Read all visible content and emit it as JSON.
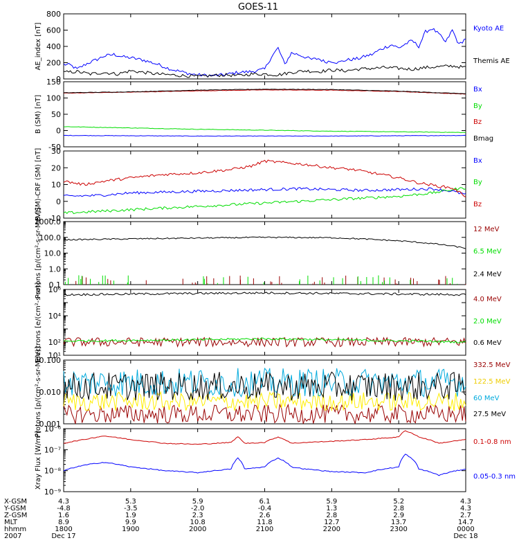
{
  "title": "GOES-11",
  "colors": {
    "blue": "#0000ff",
    "green": "#00dd00",
    "red": "#cc0000",
    "darkred": "#990000",
    "black": "#000000",
    "yellow": "#ffee00",
    "cyan": "#00aadd"
  },
  "chart_data": [
    {
      "type": "line",
      "id": "ae",
      "ylabel": "AE_index [nT]",
      "scale": "linear",
      "ylim": [
        0,
        800
      ],
      "yticks": [
        0,
        200,
        400,
        600,
        800
      ],
      "series": [
        {
          "name": "Kyoto AE",
          "color": "blue",
          "x": [
            0,
            0.1,
            0.2,
            0.35,
            0.5,
            0.6,
            0.75,
            0.9,
            1.0,
            1.2,
            1.4,
            1.6,
            1.8,
            1.9,
            2.0,
            2.2,
            2.4,
            2.6,
            2.8,
            3.0,
            3.1,
            3.2,
            3.3,
            3.4,
            3.5,
            3.6,
            3.7,
            3.8,
            3.9,
            4.0,
            4.1,
            4.2,
            4.3,
            4.4,
            4.5,
            4.6,
            4.7,
            4.8,
            4.9,
            5.0,
            5.1,
            5.2,
            5.3,
            5.4,
            5.5,
            5.6,
            5.7,
            5.8,
            5.9,
            6.0
          ],
          "y": [
            180,
            170,
            120,
            190,
            240,
            280,
            300,
            270,
            260,
            230,
            180,
            120,
            80,
            60,
            50,
            40,
            50,
            80,
            90,
            120,
            270,
            380,
            180,
            320,
            300,
            270,
            240,
            250,
            210,
            220,
            200,
            230,
            240,
            250,
            280,
            300,
            350,
            390,
            420,
            380,
            430,
            470,
            400,
            580,
            620,
            550,
            450,
            600,
            420,
            500
          ]
        },
        {
          "name": "Themis AE",
          "color": "black",
          "x": [
            0,
            0.2,
            0.4,
            0.6,
            0.8,
            1.0,
            1.2,
            1.4,
            1.6,
            1.8,
            2.0,
            2.2,
            2.4,
            2.6,
            2.8,
            3.0,
            3.2,
            3.4,
            3.6,
            3.8,
            4.0,
            4.2,
            4.4,
            4.6,
            4.8,
            5.0,
            5.2,
            5.4,
            5.6,
            5.8,
            6.0
          ],
          "y": [
            80,
            90,
            60,
            80,
            60,
            100,
            80,
            60,
            50,
            40,
            30,
            40,
            50,
            40,
            60,
            60,
            50,
            80,
            100,
            90,
            110,
            100,
            120,
            130,
            140,
            130,
            120,
            140,
            150,
            160,
            140
          ]
        }
      ]
    },
    {
      "type": "line",
      "id": "bsm",
      "ylabel": "B (SM) [nT]",
      "scale": "linear",
      "ylim": [
        -50,
        150
      ],
      "yticks": [
        -50,
        0,
        50,
        100,
        150
      ],
      "series": [
        {
          "name": "Bx",
          "color": "blue",
          "x": [
            0,
            1,
            2,
            3,
            4,
            5,
            6
          ],
          "y": [
            -15,
            -16,
            -17,
            -17,
            -17,
            -16,
            -15
          ]
        },
        {
          "name": "By",
          "color": "green",
          "x": [
            0,
            1,
            2,
            3,
            4,
            5,
            6
          ],
          "y": [
            12,
            8,
            4,
            1,
            -2,
            -4,
            -6
          ]
        },
        {
          "name": "Bz",
          "color": "red",
          "x": [
            0,
            1,
            2,
            3,
            4,
            5,
            6
          ],
          "y": [
            115,
            118,
            122,
            125,
            124,
            120,
            112
          ]
        },
        {
          "name": "Bmag",
          "color": "black",
          "x": [
            0,
            1,
            2,
            3,
            4,
            5,
            6
          ],
          "y": [
            116,
            119,
            124,
            127,
            126,
            121,
            113
          ]
        }
      ]
    },
    {
      "type": "line",
      "id": "bcrf",
      "ylabel": "B (SM)-CRF (SM) [nT]",
      "scale": "linear",
      "ylim": [
        -10,
        30
      ],
      "yticks": [
        -10,
        0,
        10,
        20,
        30
      ],
      "series": [
        {
          "name": "Bx",
          "color": "blue",
          "x": [
            0,
            0.5,
            1,
            1.5,
            2,
            2.5,
            3,
            3.5,
            4,
            4.5,
            5,
            5.5,
            5.8,
            6
          ],
          "y": [
            3,
            3.5,
            5,
            5.5,
            6,
            6.5,
            7,
            7.5,
            7,
            6.5,
            7,
            7.5,
            6,
            4
          ]
        },
        {
          "name": "By",
          "color": "green",
          "x": [
            0,
            0.5,
            1,
            1.5,
            2,
            2.5,
            3,
            3.5,
            4,
            4.5,
            5,
            5.5,
            5.8,
            6
          ],
          "y": [
            -7,
            -6,
            -5,
            -4,
            -3,
            -2,
            -1,
            0,
            1,
            2,
            3,
            5,
            7,
            8
          ]
        },
        {
          "name": "Bz",
          "color": "red",
          "x": [
            0,
            0.3,
            0.6,
            1,
            1.5,
            2,
            2.5,
            2.8,
            3,
            3.3,
            3.6,
            4,
            4.3,
            4.6,
            5,
            5.3,
            5.6,
            5.8,
            6
          ],
          "y": [
            12,
            10,
            12,
            14,
            16,
            17,
            19,
            21,
            24,
            23,
            22,
            20,
            19,
            17,
            14,
            11,
            9,
            8,
            3
          ]
        }
      ]
    },
    {
      "type": "line",
      "id": "protons1",
      "ylabel": "Protons [p/(cm²-s-sr-MeV)]",
      "scale": "log",
      "ylim": [
        0.1,
        1000
      ],
      "ytick_labels": [
        "0.1",
        "1.0",
        "10.0",
        "100.0",
        "1000.0"
      ],
      "series": [
        {
          "name": "12 MeV",
          "color": "darkred"
        },
        {
          "name": "6.5 MeV",
          "color": "green"
        },
        {
          "name": "2.4 MeV",
          "color": "black",
          "x": [
            0,
            1,
            2,
            3,
            4,
            5,
            5.5,
            6
          ],
          "y": [
            70,
            80,
            90,
            100,
            95,
            60,
            40,
            20
          ]
        }
      ]
    },
    {
      "type": "line",
      "id": "electrons",
      "ylabel": "Electrons [e/(cm²-s-sr)]",
      "scale": "log",
      "ylim": [
        10,
        1000000
      ],
      "ytick_labels": [
        "10¹",
        "10²",
        "10⁴",
        "10⁶"
      ],
      "series": [
        {
          "name": "4.0 MeV",
          "color": "darkred",
          "x": [
            0,
            6
          ],
          "y": [
            100,
            100
          ]
        },
        {
          "name": "2.0 MeV",
          "color": "green",
          "x": [
            0,
            2,
            3,
            4,
            6
          ],
          "y": [
            120,
            150,
            180,
            150,
            100
          ]
        },
        {
          "name": "0.6 MeV",
          "color": "black",
          "x": [
            0,
            1,
            2,
            3,
            4,
            5,
            6
          ],
          "y": [
            400000,
            450000,
            500000,
            550000,
            500000,
            450000,
            400000
          ]
        }
      ]
    },
    {
      "type": "line",
      "id": "protons2",
      "ylabel": "Protons [p/(cm²-s-sr-MeV)]",
      "scale": "log",
      "ylim": [
        0.001,
        0.1
      ],
      "ytick_labels": [
        "0.001",
        "0.010",
        "0.100"
      ],
      "series": [
        {
          "name": "332.5 MeV",
          "color": "darkred",
          "x": [
            0,
            6
          ],
          "y": [
            0.002,
            0.002
          ]
        },
        {
          "name": "122.5 MeV",
          "color": "yellow",
          "x": [
            0,
            6
          ],
          "y": [
            0.005,
            0.005
          ]
        },
        {
          "name": "60 MeV",
          "color": "cyan",
          "x": [
            0,
            6
          ],
          "y": [
            0.02,
            0.02
          ]
        },
        {
          "name": "27.5 MeV",
          "color": "black",
          "x": [
            0,
            6
          ],
          "y": [
            0.015,
            0.015
          ]
        }
      ]
    },
    {
      "type": "line",
      "id": "xray",
      "ylabel": "Xray Flux [W/m²]",
      "scale": "log",
      "ylim": [
        1e-09,
        1e-06
      ],
      "ytick_labels": [
        "10⁻⁹",
        "10⁻⁸",
        "10⁻⁷",
        "10⁻⁶"
      ],
      "series": [
        {
          "name": "0.1-0.8 nm",
          "color": "red",
          "x": [
            0,
            0.3,
            0.6,
            1.0,
            1.5,
            2.0,
            2.5,
            2.6,
            2.7,
            3.0,
            3.2,
            3.4,
            3.6,
            4.0,
            4.5,
            5.0,
            5.1,
            5.3,
            5.6,
            6.0
          ],
          "y": [
            2e-07,
            3e-07,
            4.5e-07,
            3e-07,
            2e-07,
            1.8e-07,
            2.2e-07,
            4e-07,
            2e-07,
            2.2e-07,
            4e-07,
            2e-07,
            2.2e-07,
            2.5e-07,
            3e-07,
            4e-07,
            8e-07,
            4e-07,
            2e-07,
            3e-07
          ]
        },
        {
          "name": "0.05-0.3 nm",
          "color": "blue",
          "x": [
            0,
            0.3,
            0.6,
            1.0,
            1.5,
            2.0,
            2.5,
            2.6,
            2.7,
            3.0,
            3.2,
            3.4,
            3.6,
            4.0,
            4.5,
            5.0,
            5.1,
            5.3,
            5.6,
            6.0
          ],
          "y": [
            1e-08,
            1.8e-08,
            2.5e-08,
            1.5e-08,
            1e-08,
            8e-09,
            1.2e-08,
            4e-08,
            1.2e-08,
            1.5e-08,
            4e-08,
            1.5e-08,
            1.2e-08,
            9e-09,
            8e-09,
            1.5e-08,
            6e-08,
            1.2e-08,
            6e-09,
            1.2e-08
          ]
        }
      ]
    }
  ],
  "ephemeris": {
    "row_labels": [
      "X-GSM",
      "Y-GSM",
      "Z-GSM",
      "MLT",
      "hhmm",
      "2007"
    ],
    "columns": [
      [
        "4.3",
        "-4.8",
        "1.6",
        "8.9",
        "1800",
        "Dec 17"
      ],
      [
        "5.3",
        "-3.5",
        "1.9",
        "9.9",
        "1900",
        ""
      ],
      [
        "5.9",
        "-2.0",
        "2.3",
        "10.8",
        "2000",
        ""
      ],
      [
        "6.1",
        "-0.4",
        "2.6",
        "11.8",
        "2100",
        ""
      ],
      [
        "5.9",
        "1.3",
        "2.8",
        "12.7",
        "2200",
        ""
      ],
      [
        "5.2",
        "2.8",
        "2.9",
        "13.7",
        "2300",
        ""
      ],
      [
        "4.3",
        "4.3",
        "2.7",
        "14.7",
        "0000",
        "Dec 18"
      ]
    ]
  }
}
